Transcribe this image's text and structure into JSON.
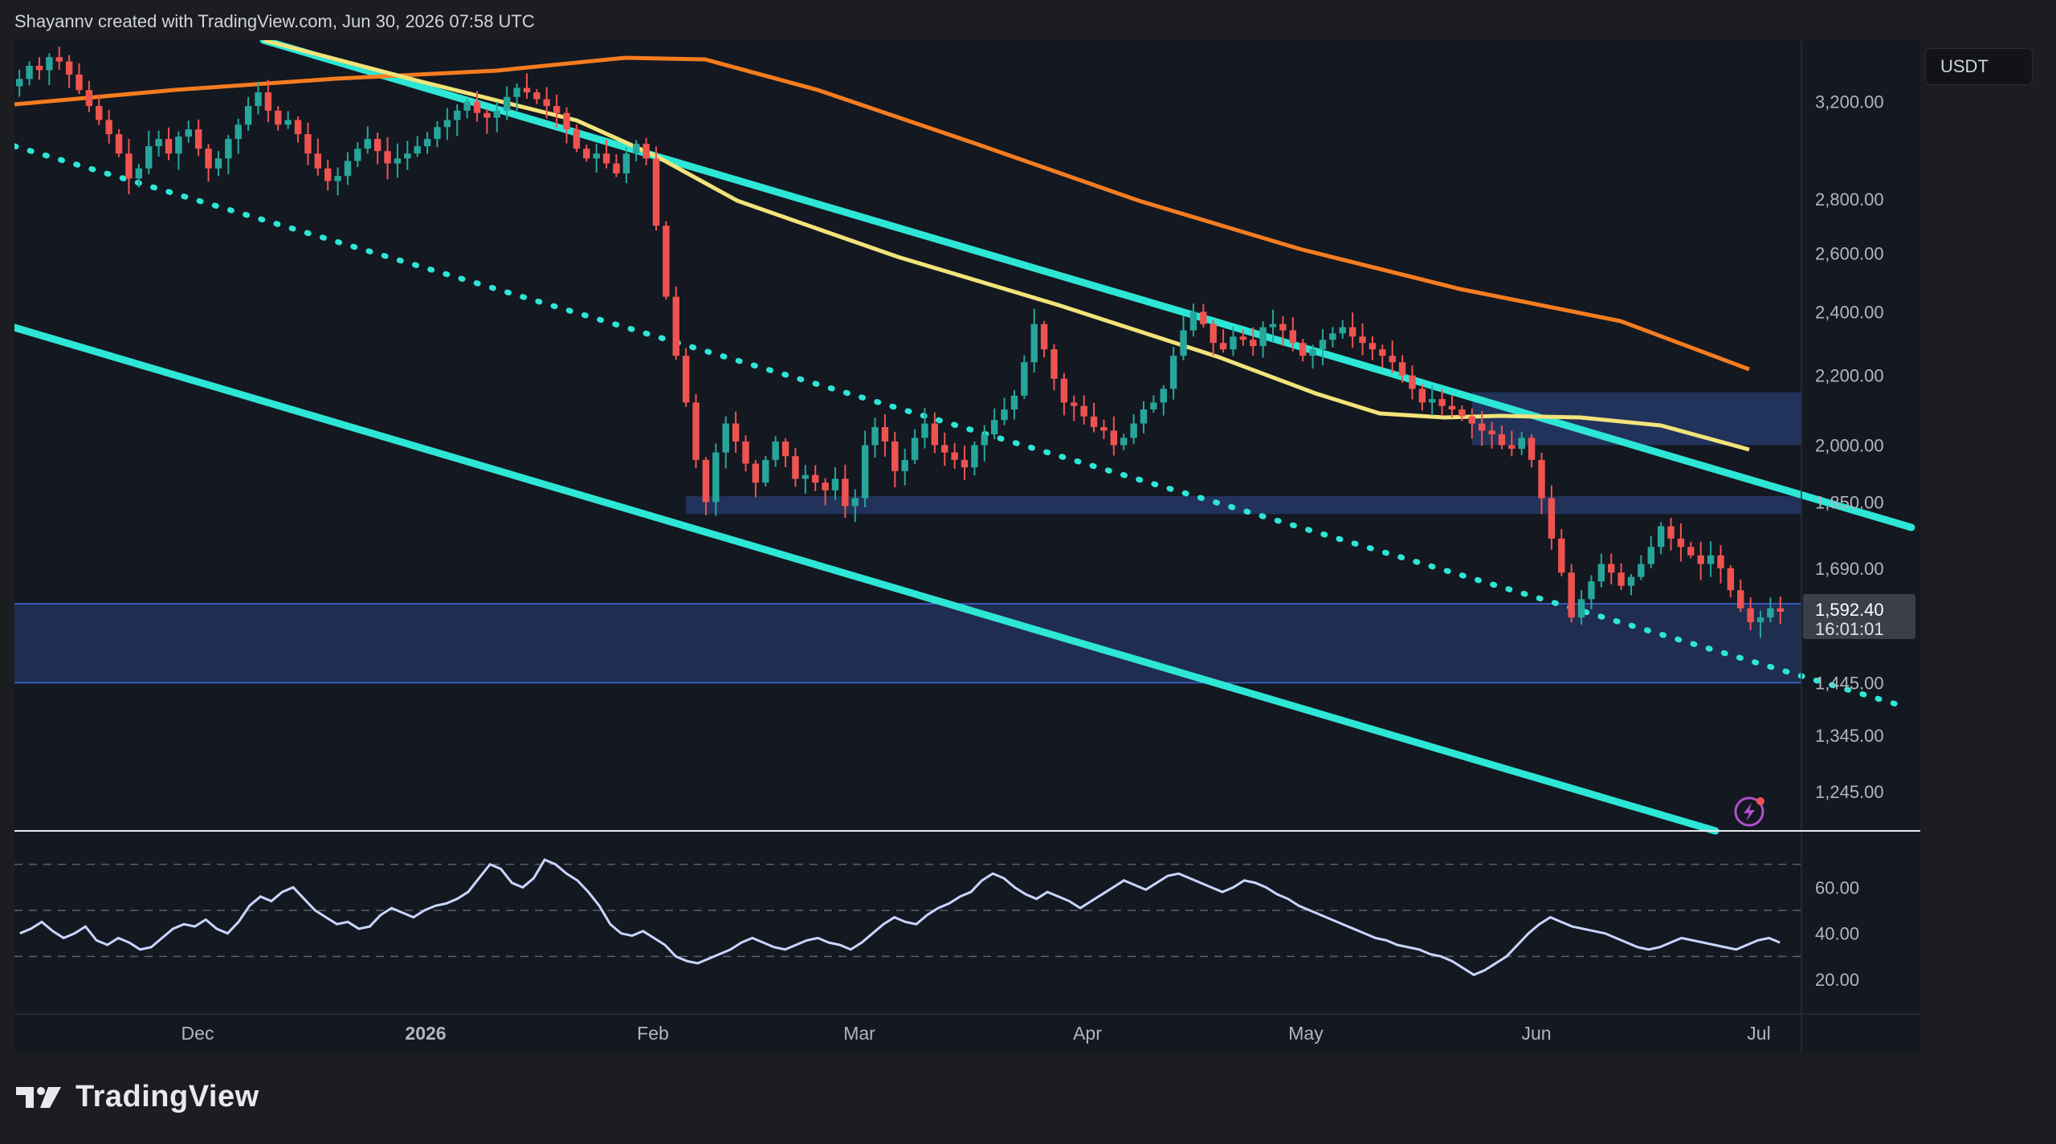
{
  "header": {
    "attribution": "Shayannv created with TradingView.com, Jun 30, 2026 07:58 UTC"
  },
  "currency": "USDT",
  "brand": {
    "name": "TradingView"
  },
  "colors": {
    "background": "#1c1d21",
    "pane": "#141821",
    "candle_up": "#26a69a",
    "candle_down": "#ef5350",
    "channel": "#2ee6d6",
    "ma_slow": "#f57c1f",
    "ma_mid": "#f2e37a",
    "rsi": "#c9d6ff",
    "zone": "#2c4a8a"
  },
  "chart_data": {
    "type": "candlestick",
    "price_axis_ticks": [
      "3,200.00",
      "2,800.00",
      "2,600.00",
      "2,400.00",
      "2,200.00",
      "2,000.00",
      "1,850.00",
      "1,690.00",
      "1,445.00",
      "1,345.00",
      "1,245.00"
    ],
    "last_price_label": "1,592.40",
    "countdown_label": "16:01:01",
    "time_axis_labels": [
      "Dec",
      "2026",
      "Feb",
      "Mar",
      "Apr",
      "May",
      "Jun",
      "Jul"
    ],
    "rsi_axis_ticks": [
      "60.00",
      "40.00",
      "20.00"
    ],
    "rsi_levels": [
      70,
      50,
      30
    ],
    "price_range": [
      1180,
      3480
    ],
    "zones": [
      {
        "name": "supply-zone",
        "from": 2000,
        "to": 2150,
        "start": "May 20"
      },
      {
        "name": "resistance-band",
        "from": 1820,
        "to": 1865,
        "start": "Feb 05"
      },
      {
        "name": "demand-zone",
        "from": 1445,
        "to": 1610,
        "start": "Nov 05"
      }
    ],
    "candles_close": [
      3300,
      3360,
      3340,
      3400,
      3380,
      3320,
      3250,
      3180,
      3120,
      3060,
      2980,
      2880,
      2920,
      3010,
      3040,
      2980,
      3050,
      3080,
      3000,
      2920,
      2960,
      3040,
      3100,
      3180,
      3240,
      3160,
      3100,
      3120,
      3060,
      2980,
      2920,
      2870,
      2890,
      2950,
      3000,
      3040,
      2990,
      2940,
      2960,
      2980,
      3010,
      3040,
      3090,
      3120,
      3160,
      3200,
      3150,
      3130,
      3160,
      3220,
      3260,
      3240,
      3210,
      3180,
      3150,
      3080,
      3000,
      2960,
      2980,
      2940,
      2900,
      2980,
      3020,
      2960,
      2700,
      2450,
      2260,
      2120,
      1960,
      1850,
      1980,
      2060,
      2010,
      1950,
      1900,
      1960,
      2010,
      1970,
      1910,
      1920,
      1900,
      1880,
      1910,
      1840,
      1860,
      2000,
      2050,
      2010,
      1930,
      1960,
      2020,
      2060,
      2000,
      1980,
      1960,
      1940,
      2000,
      2030,
      2070,
      2100,
      2140,
      2240,
      2360,
      2280,
      2190,
      2120,
      2110,
      2080,
      2050,
      2040,
      2000,
      2020,
      2060,
      2100,
      2120,
      2160,
      2260,
      2340,
      2400,
      2360,
      2300,
      2280,
      2320,
      2310,
      2290,
      2350,
      2360,
      2340,
      2300,
      2260,
      2280,
      2310,
      2330,
      2350,
      2320,
      2300,
      2280,
      2260,
      2240,
      2200,
      2160,
      2120,
      2130,
      2110,
      2100,
      2080,
      2060,
      2040,
      2030,
      2000,
      1990,
      2020,
      1960,
      1860,
      1760,
      1680,
      1580,
      1620,
      1660,
      1700,
      1680,
      1650,
      1670,
      1700,
      1740,
      1790,
      1760,
      1740,
      1720,
      1700,
      1720,
      1690,
      1640,
      1600,
      1570,
      1580,
      1600,
      1592.4
    ],
    "rsi_values": [
      40,
      42,
      45,
      41,
      38,
      40,
      43,
      37,
      35,
      38,
      36,
      33,
      34,
      38,
      42,
      44,
      43,
      46,
      42,
      40,
      45,
      52,
      56,
      54,
      58,
      60,
      55,
      50,
      47,
      44,
      45,
      42,
      43,
      48,
      51,
      49,
      47,
      50,
      52,
      53,
      55,
      58,
      64,
      70,
      68,
      62,
      60,
      64,
      72,
      70,
      66,
      63,
      58,
      52,
      44,
      40,
      39,
      41,
      38,
      35,
      30,
      28,
      27,
      29,
      31,
      33,
      36,
      38,
      36,
      34,
      33,
      35,
      37,
      38,
      36,
      35,
      33,
      36,
      40,
      44,
      47,
      45,
      44,
      48,
      51,
      53,
      56,
      58,
      63,
      66,
      64,
      60,
      57,
      55,
      58,
      56,
      54,
      51,
      54,
      57,
      60,
      63,
      61,
      59,
      62,
      65,
      66,
      64,
      62,
      60,
      58,
      60,
      63,
      62,
      60,
      57,
      55,
      52,
      50,
      48,
      46,
      44,
      42,
      40,
      38,
      37,
      35,
      34,
      33,
      31,
      30,
      28,
      25,
      22,
      24,
      27,
      30,
      35,
      40,
      44,
      47,
      45,
      43,
      42,
      41,
      40,
      38,
      36,
      34,
      33,
      34,
      36,
      38,
      37,
      36,
      35,
      34,
      33,
      35,
      37,
      38,
      36
    ]
  }
}
